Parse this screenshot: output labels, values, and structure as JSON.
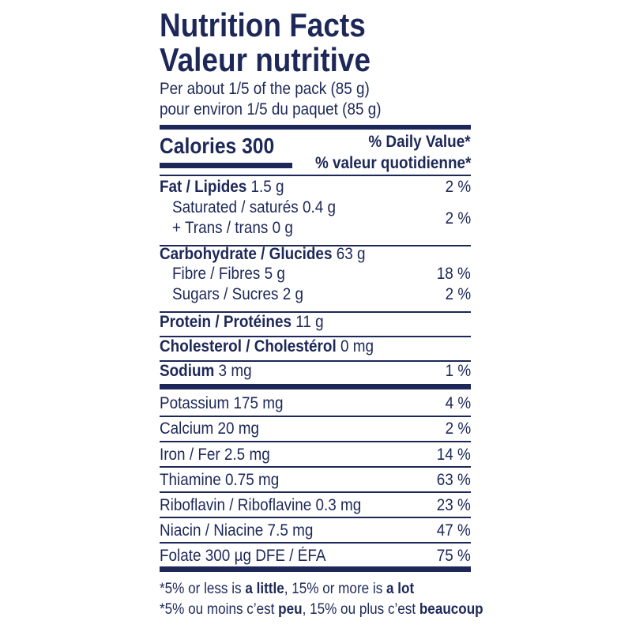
{
  "header": {
    "title": "Nutrition Facts",
    "title_fr": "Valeur nutritive",
    "serving": "Per about 1/5 of the pack (85 g)",
    "serving_fr": "pour environ 1/5 du paquet (85 g)"
  },
  "calories": {
    "label": "Calories 300",
    "daily_value": "% Daily Value*",
    "daily_value_fr": "% valeur quotidienne*"
  },
  "nutrients": [
    {
      "name": "Fat / Lipides",
      "amount": "1.5 g",
      "dv": "2 %"
    },
    {
      "name": "Saturated / saturés 0.4 g"
    },
    {
      "name": "+ Trans / trans 0 g",
      "dv": "2 %"
    },
    {
      "name": "Carbohydrate / Glucides",
      "amount": "63 g"
    },
    {
      "name": "Fibre / Fibres 5 g",
      "dv": "18 %"
    },
    {
      "name": "Sugars / Sucres 2 g",
      "dv": "2 %"
    },
    {
      "name": "Protein / Protéines",
      "amount": "11 g"
    },
    {
      "name": "Cholesterol / Cholestérol",
      "amount": "0 mg"
    },
    {
      "name": "Sodium",
      "amount": "3 mg",
      "dv": "1 %"
    },
    {
      "name": "Potassium 175 mg",
      "dv": "4 %"
    },
    {
      "name": "Calcium 20 mg",
      "dv": "2 %"
    },
    {
      "name": "Iron / Fer 2.5 mg",
      "dv": "14 %"
    },
    {
      "name": "Thiamine 0.75 mg",
      "dv": "63 %"
    },
    {
      "name": "Riboflavin / Riboflavine 0.3 mg",
      "dv": "23 %"
    },
    {
      "name": "Niacin / Niacine 7.5 mg",
      "dv": "47 %"
    },
    {
      "name": "Folate 300 µg DFE / ÉFA",
      "dv": "75 %"
    }
  ],
  "footer": [
    [
      "*5% or less is ",
      "a little",
      ", 15% or more is ",
      "a lot"
    ],
    [
      "*5% ou moins c’est ",
      "peu",
      ", 15% ou plus c’est ",
      "beaucoup"
    ]
  ]
}
